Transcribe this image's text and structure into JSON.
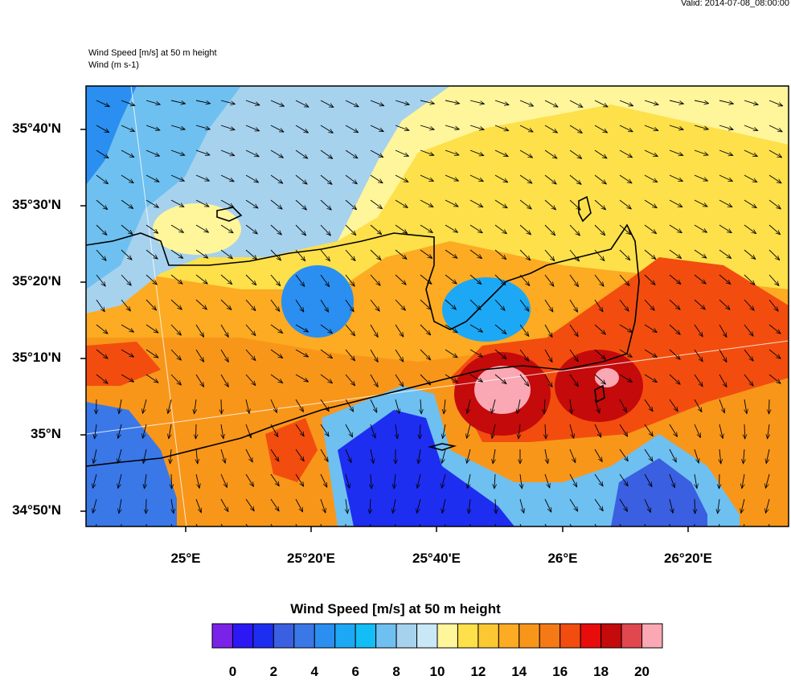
{
  "header": {
    "valid": "Valid: 2014-07-08_08:00:00",
    "field_title": "Wind Speed [m/s] at 50 m height",
    "vector_title": "Wind   (m s-1)"
  },
  "axes": {
    "lat_labels": [
      "35°40'N",
      "35°30'N",
      "35°20'N",
      "35°10'N",
      "35°N",
      "34°50'N"
    ],
    "lon_labels": [
      "25°E",
      "25°20'E",
      "25°40'E",
      "26°E",
      "26°20'E"
    ]
  },
  "colorbar": {
    "title": "Wind Speed [m/s] at 50 m height",
    "colors": [
      "#7a22e8",
      "#2b18f5",
      "#1e2ef0",
      "#3a5fe0",
      "#3a78e8",
      "#2a8ff0",
      "#1ca8f5",
      "#12bef5",
      "#6ec0f0",
      "#a6d2ee",
      "#c8e8f7",
      "#fff59a",
      "#fde04a",
      "#fcc832",
      "#fcab22",
      "#f8961a",
      "#f57a16",
      "#f24d0e",
      "#e80c0c",
      "#c40a0a",
      "#e0474f",
      "#f9a8b4"
    ],
    "tick_labels": [
      "0",
      "2",
      "4",
      "6",
      "8",
      "10",
      "12",
      "14",
      "16",
      "18",
      "20"
    ]
  }
}
